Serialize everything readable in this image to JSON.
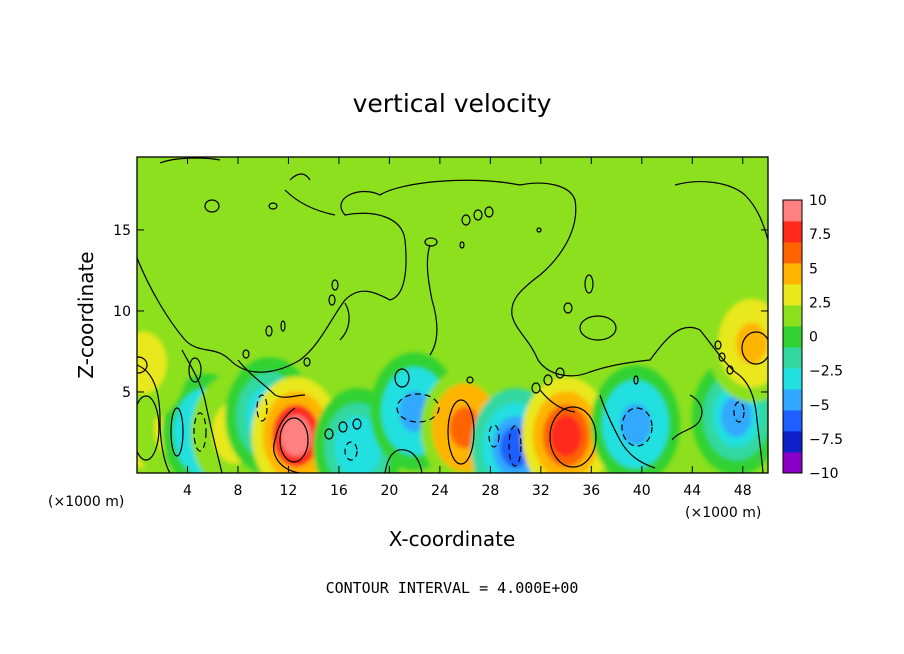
{
  "chart_data": {
    "type": "heatmap",
    "title": "vertical velocity",
    "xlabel": "X-coordinate",
    "ylabel": "Z-coordinate",
    "x_unit_left": "(×1000 m)",
    "x_unit_right": "(×1000 m)",
    "footer": "CONTOUR INTERVAL = 4.000E+00",
    "xlim": [
      0,
      50
    ],
    "ylim": [
      0,
      19.5
    ],
    "x_ticks": [
      4,
      8,
      12,
      16,
      20,
      24,
      28,
      32,
      36,
      40,
      44,
      48
    ],
    "y_ticks": [
      5,
      10,
      15
    ],
    "colorbar": {
      "min": -10,
      "max": 10,
      "tick_labels": [
        "10",
        "7.5",
        "5",
        "2.5",
        "0",
        "-2.5",
        "-5",
        "-7.5",
        "-10"
      ],
      "colors": [
        "#8a00c8",
        "#1020c8",
        "#1e60ff",
        "#30a8ff",
        "#22e0e0",
        "#32d8a0",
        "#32d232",
        "#8ce01e",
        "#e8e81a",
        "#ffb400",
        "#ff6400",
        "#ff2a1a",
        "#ff8080"
      ]
    },
    "contour_interval": 4.0,
    "features": [
      {
        "label": "updraft",
        "x": 0.8,
        "z": 3.0,
        "w": 6
      },
      {
        "label": "updraft",
        "x": 3.2,
        "z": 2.8,
        "w": 3.5
      },
      {
        "label": "downdraft",
        "x": 5.5,
        "z": 2.5,
        "w": -5
      },
      {
        "label": "updraft",
        "x": 7.8,
        "z": 2.5,
        "w": 3
      },
      {
        "label": "downdraft",
        "x": 10.5,
        "z": 3.5,
        "w": -4
      },
      {
        "label": "updraft",
        "x": 12.6,
        "z": 2.3,
        "w": 8.5
      },
      {
        "label": "downdraft",
        "x": 17.5,
        "z": 1.6,
        "w": -3.5
      },
      {
        "label": "downdraft",
        "x": 22.0,
        "z": 3.8,
        "w": -5
      },
      {
        "label": "updraft",
        "x": 26.0,
        "z": 2.8,
        "w": 6.5
      },
      {
        "label": "downdraft",
        "x": 30.0,
        "z": 1.6,
        "w": -6
      },
      {
        "label": "updraft",
        "x": 34.0,
        "z": 2.3,
        "w": 8
      },
      {
        "label": "downdraft",
        "x": 39.5,
        "z": 3.0,
        "w": -5
      },
      {
        "label": "downdraft",
        "x": 47.5,
        "z": 3.5,
        "w": -4
      },
      {
        "label": "updraft",
        "x": 48.7,
        "z": 8.0,
        "w": 4.5
      },
      {
        "label": "updraft",
        "x": 0.5,
        "z": 6.8,
        "w": 3
      }
    ]
  }
}
